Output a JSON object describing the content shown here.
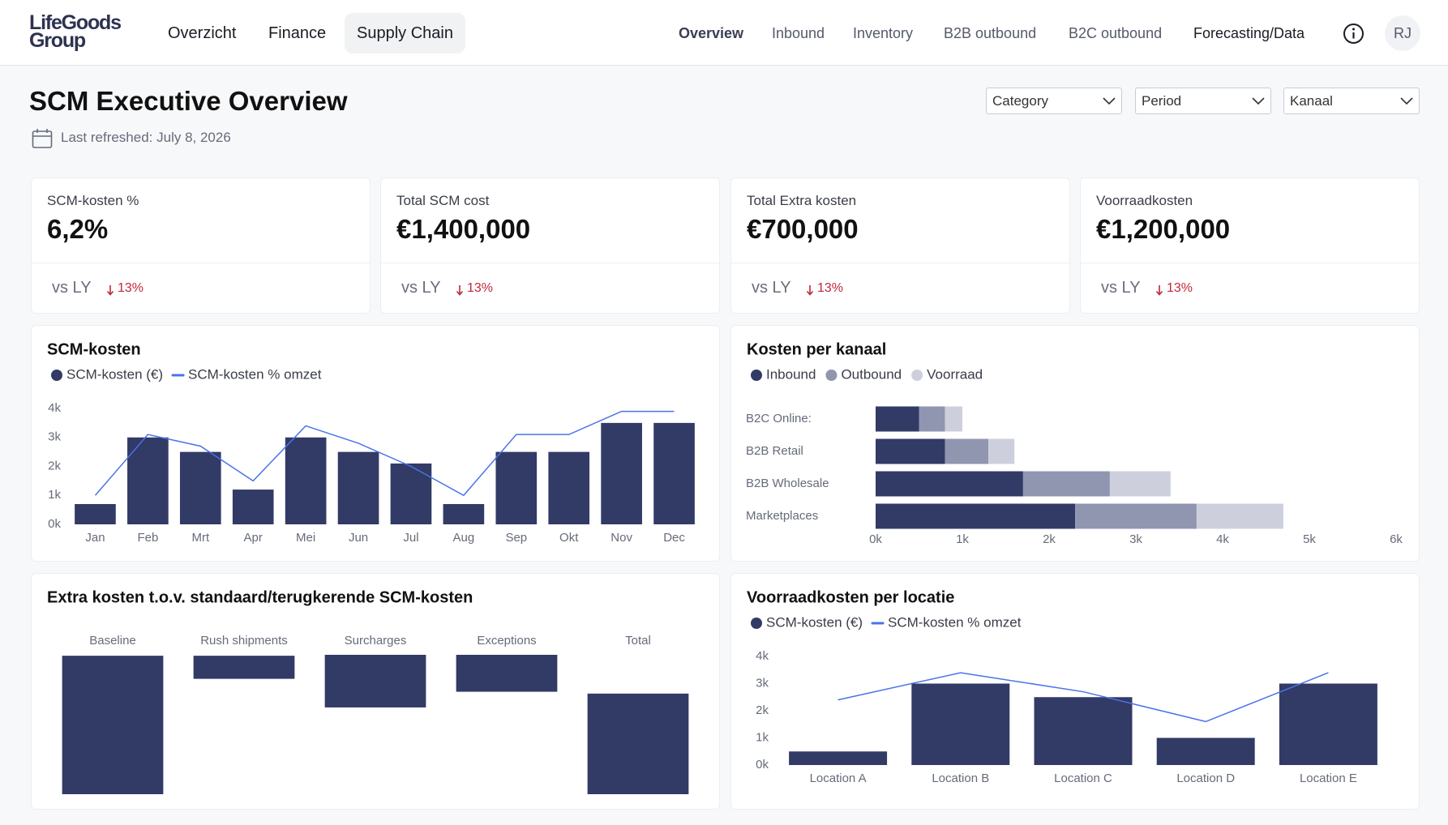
{
  "header": {
    "logo": [
      "LifeGoods",
      "Group"
    ],
    "main_nav": [
      {
        "label": "Overzicht"
      },
      {
        "label": "Finance"
      },
      {
        "label": "Supply Chain",
        "active": true
      }
    ],
    "sub_nav": [
      {
        "label": "Overview",
        "active": true
      },
      {
        "label": "Inbound"
      },
      {
        "label": "Inventory"
      },
      {
        "label": "B2B outbound"
      },
      {
        "label": "B2C outbound"
      },
      {
        "label": "Forecasting/Data"
      }
    ],
    "avatar": "RJ"
  },
  "page": {
    "title": "SCM Executive Overview",
    "refreshed": "Last refreshed: July 8, 2026",
    "filters": [
      "Category",
      "Period",
      "Kanaal"
    ]
  },
  "kpis": [
    {
      "label": "SCM-kosten %",
      "value": "6,2%",
      "compare": "vs LY",
      "change": "13%"
    },
    {
      "label": "Total SCM cost",
      "value": "€1,400,000",
      "compare": "vs LY",
      "change": "13%"
    },
    {
      "label": "Total Extra kosten",
      "value": "€700,000",
      "compare": "vs LY",
      "change": "13%"
    },
    {
      "label": "Voorraadkosten",
      "value": "€1,200,000",
      "compare": "vs LY",
      "change": "13%"
    }
  ],
  "chart_data": [
    {
      "type": "combo",
      "title": "SCM-kosten",
      "categories": [
        "Jan",
        "Feb",
        "Mrt",
        "Apr",
        "Mei",
        "Jun",
        "Jul",
        "Aug",
        "Sep",
        "Okt",
        "Nov",
        "Dec"
      ],
      "series": [
        {
          "name": "SCM-kosten (€)",
          "type": "bar",
          "color": "#323a66",
          "values": [
            0.7,
            3.0,
            2.5,
            1.2,
            3.0,
            2.5,
            2.1,
            0.7,
            2.5,
            2.5,
            3.5,
            3.5
          ]
        },
        {
          "name": "SCM-kosten % omzet",
          "type": "line",
          "color": "#4a73e8",
          "values": [
            1.0,
            3.1,
            2.7,
            1.5,
            3.4,
            2.8,
            2.0,
            1.0,
            3.1,
            3.1,
            3.9,
            3.9
          ]
        }
      ],
      "ylim": [
        0,
        4
      ],
      "yticks": [
        {
          "value": 0,
          "label": "0k"
        },
        {
          "value": 1,
          "label": "1k"
        },
        {
          "value": 2,
          "label": "2k"
        },
        {
          "value": 3,
          "label": "3k"
        },
        {
          "value": 4,
          "label": "4k"
        }
      ]
    },
    {
      "type": "stacked-barh",
      "title": "Kosten per kanaal",
      "categories": [
        "B2C Online:",
        "B2B Retail",
        "B2B Wholesale",
        "Marketplaces"
      ],
      "series": [
        {
          "name": "Inbound",
          "color": "#323a66",
          "values": [
            0.5,
            0.8,
            1.7,
            2.3
          ]
        },
        {
          "name": "Outbound",
          "color": "#9095b0",
          "values": [
            0.3,
            0.5,
            1.0,
            1.4
          ]
        },
        {
          "name": "Voorraad",
          "color": "#cdd0dc",
          "values": [
            0.2,
            0.3,
            0.7,
            1.0
          ]
        }
      ],
      "xlim": [
        0,
        6
      ],
      "xticks": [
        {
          "value": 0,
          "label": "0k"
        },
        {
          "value": 1,
          "label": "1k"
        },
        {
          "value": 2,
          "label": "2k"
        },
        {
          "value": 3,
          "label": "3k"
        },
        {
          "value": 4,
          "label": "4k"
        },
        {
          "value": 5,
          "label": "5k"
        },
        {
          "value": 6,
          "label": "6k"
        }
      ]
    },
    {
      "type": "waterfall",
      "title": "Extra kosten t.o.v. standaard/terugkerende SCM-kosten",
      "categories": [
        "Baseline",
        "Rush shipments",
        "Surcharges",
        "Exceptions",
        "Total"
      ],
      "starts": [
        0,
        125,
        94,
        111,
        0
      ],
      "ends": [
        150,
        150,
        151,
        151,
        109
      ],
      "color": "#323a66",
      "ylim": [
        0,
        155
      ]
    },
    {
      "type": "combo",
      "title": "Voorraadkosten per locatie",
      "categories": [
        "Location A",
        "Location B",
        "Location C",
        "Location D",
        "Location E"
      ],
      "series": [
        {
          "name": "SCM-kosten (€)",
          "type": "bar",
          "color": "#323a66",
          "values": [
            0.5,
            3.0,
            2.5,
            1.0,
            3.0
          ]
        },
        {
          "name": "SCM-kosten % omzet",
          "type": "line",
          "color": "#4a73e8",
          "values": [
            2.4,
            3.4,
            2.7,
            1.6,
            3.4
          ]
        }
      ],
      "ylim": [
        0,
        4
      ],
      "yticks": [
        {
          "value": 0,
          "label": "0k"
        },
        {
          "value": 1,
          "label": "1k"
        },
        {
          "value": 2,
          "label": "2k"
        },
        {
          "value": 3,
          "label": "3k"
        },
        {
          "value": 4,
          "label": "4k"
        }
      ]
    }
  ]
}
